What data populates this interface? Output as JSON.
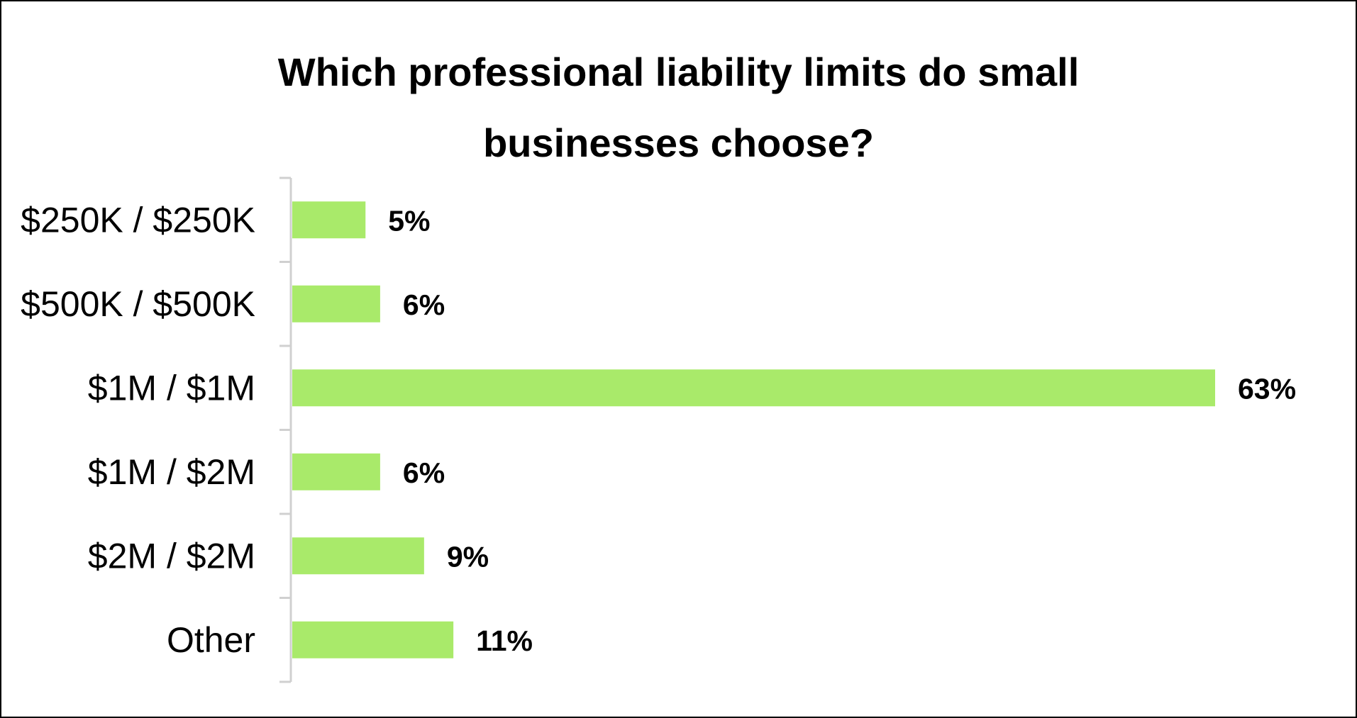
{
  "chart_data": {
    "type": "bar",
    "orientation": "horizontal",
    "title_lines": [
      "Which professional liability limits do small",
      "businesses choose?"
    ],
    "title": "Which professional liability limits do small businesses choose?",
    "categories": [
      "$250K / $250K",
      "$500K / $500K",
      "$1M / $1M",
      "$1M / $2M",
      "$2M / $2M",
      "Other"
    ],
    "values": [
      5,
      6,
      63,
      6,
      9,
      11
    ],
    "value_labels": [
      "5%",
      "6%",
      "63%",
      "6%",
      "9%",
      "11%"
    ],
    "unit": "%",
    "xlim": [
      0,
      63
    ],
    "grid": false,
    "legend": "none",
    "bar_color": "#A9EA6A",
    "axis_color": "#D0D0D0"
  }
}
